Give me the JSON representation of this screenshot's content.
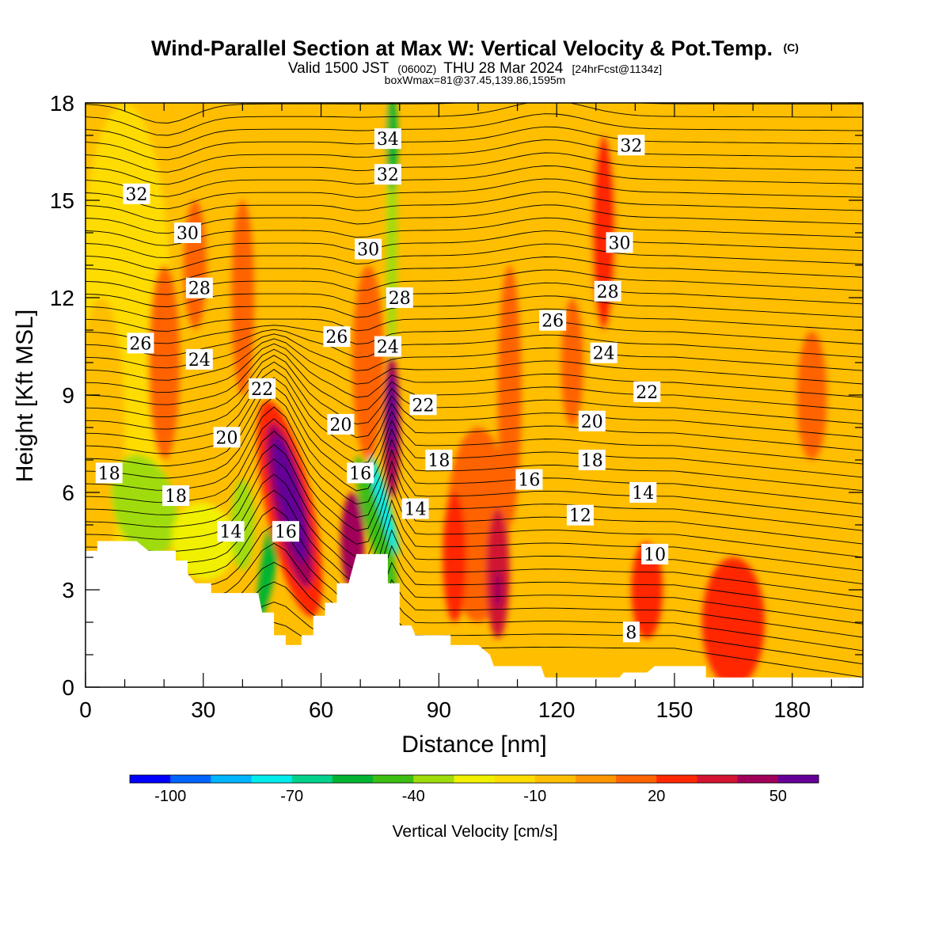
{
  "title": "Wind-Parallel Section at Max W: Vertical Velocity & Pot.Temp.",
  "title_mark": "(C)",
  "subtitle_parts": [
    "Valid 1500 JST",
    "(0600Z)",
    "THU 28 Mar 2024",
    "[24hrFcst@1134z]"
  ],
  "subtitle2": "boxWmax=81@37.45,139.86,1595m",
  "chart_data": {
    "type": "heatmap",
    "xlabel": "Distance [nm]",
    "ylabel": "Height [Kft MSL]",
    "xlim": [
      0,
      198
    ],
    "ylim": [
      0,
      18
    ],
    "xticks": [
      0,
      30,
      60,
      90,
      120,
      150,
      180
    ],
    "yticks": [
      0,
      3,
      6,
      9,
      12,
      15,
      18
    ],
    "colorbar": {
      "title": "Vertical Velocity [cm/s]",
      "min": -110,
      "step": 10,
      "tick_values": [
        -100,
        -70,
        -40,
        -10,
        20,
        50
      ],
      "tick_labels": [
        "-100",
        "-70",
        "-40",
        "-10",
        "20",
        "50"
      ],
      "colors": [
        "#0000ff",
        "#0064ff",
        "#00b4ff",
        "#00ebeb",
        "#00d28c",
        "#00b432",
        "#3cbe14",
        "#a0dc0a",
        "#f0f000",
        "#ffdc00",
        "#ffbe00",
        "#ff9600",
        "#ff6400",
        "#ff2800",
        "#d21432",
        "#a0005a",
        "#640096"
      ]
    },
    "contour_field": "Potential temperature",
    "contour_labels": [
      {
        "text": "34",
        "x": 77,
        "y": 16.9
      },
      {
        "text": "32",
        "x": 77,
        "y": 15.8
      },
      {
        "text": "32",
        "x": 13,
        "y": 15.2
      },
      {
        "text": "32",
        "x": 139,
        "y": 16.7
      },
      {
        "text": "30",
        "x": 26,
        "y": 14.0
      },
      {
        "text": "30",
        "x": 72,
        "y": 13.5
      },
      {
        "text": "30",
        "x": 136,
        "y": 13.7
      },
      {
        "text": "28",
        "x": 29,
        "y": 12.3
      },
      {
        "text": "28",
        "x": 80,
        "y": 12.0
      },
      {
        "text": "28",
        "x": 133,
        "y": 12.2
      },
      {
        "text": "26",
        "x": 14,
        "y": 10.6
      },
      {
        "text": "26",
        "x": 64,
        "y": 10.8
      },
      {
        "text": "26",
        "x": 119,
        "y": 11.3
      },
      {
        "text": "24",
        "x": 29,
        "y": 10.1
      },
      {
        "text": "24",
        "x": 77,
        "y": 10.5
      },
      {
        "text": "24",
        "x": 132,
        "y": 10.3
      },
      {
        "text": "22",
        "x": 45,
        "y": 9.2
      },
      {
        "text": "22",
        "x": 86,
        "y": 8.7
      },
      {
        "text": "22",
        "x": 143,
        "y": 9.1
      },
      {
        "text": "20",
        "x": 36,
        "y": 7.7
      },
      {
        "text": "20",
        "x": 65,
        "y": 8.1
      },
      {
        "text": "20",
        "x": 129,
        "y": 8.2
      },
      {
        "text": "18",
        "x": 6,
        "y": 6.6
      },
      {
        "text": "18",
        "x": 23,
        "y": 5.9
      },
      {
        "text": "18",
        "x": 90,
        "y": 7.0
      },
      {
        "text": "18",
        "x": 129,
        "y": 7.0
      },
      {
        "text": "16",
        "x": 70,
        "y": 6.6
      },
      {
        "text": "16",
        "x": 113,
        "y": 6.4
      },
      {
        "text": "16",
        "x": 51,
        "y": 4.8
      },
      {
        "text": "14",
        "x": 37,
        "y": 4.8
      },
      {
        "text": "14",
        "x": 84,
        "y": 5.5
      },
      {
        "text": "14",
        "x": 142,
        "y": 6.0
      },
      {
        "text": "12",
        "x": 126,
        "y": 5.3
      },
      {
        "text": "10",
        "x": 145,
        "y": 4.1
      },
      {
        "text": "8",
        "x": 139,
        "y": 1.7
      }
    ]
  }
}
